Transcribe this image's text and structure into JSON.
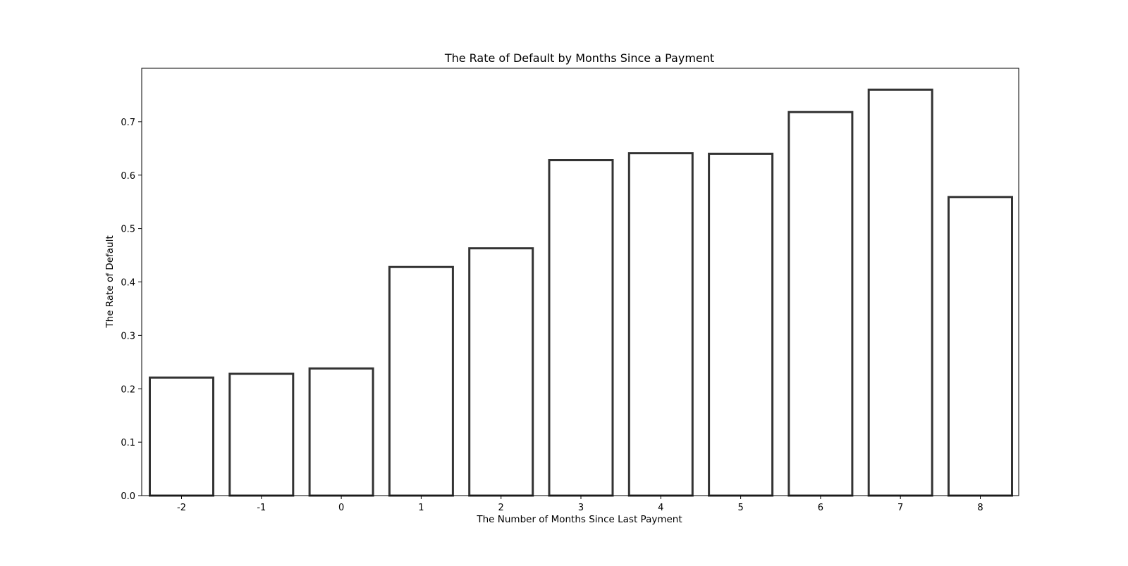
{
  "chart_data": {
    "type": "bar",
    "title": "The Rate of Default by Months Since a Payment",
    "xlabel": "The Number of Months Since Last Payment",
    "ylabel": "The Rate of Default",
    "categories": [
      "-2",
      "-1",
      "0",
      "1",
      "2",
      "3",
      "4",
      "5",
      "6",
      "7",
      "8"
    ],
    "values": [
      0.221,
      0.228,
      0.238,
      0.428,
      0.463,
      0.628,
      0.641,
      0.64,
      0.718,
      0.76,
      0.559
    ],
    "ylim": [
      0,
      0.8
    ],
    "yticks": [
      "0.0",
      "0.1",
      "0.2",
      "0.3",
      "0.4",
      "0.5",
      "0.6",
      "0.7"
    ],
    "grid": false,
    "bar_fill": "#ffffff",
    "bar_edge": "#333333"
  }
}
